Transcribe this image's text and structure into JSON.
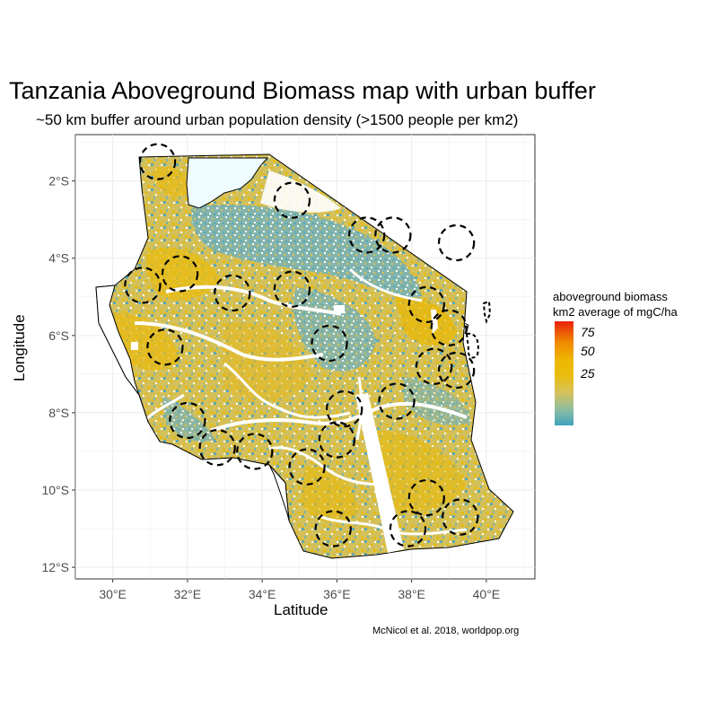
{
  "title": "Tanzania Aboveground Biomass map with urban buffer",
  "subtitle": "~50 km buffer around urban population density (>1500 people per km2)",
  "x_axis_title": "Latitude",
  "y_axis_title": "Longitude",
  "x_ticks": [
    "30°E",
    "32°E",
    "34°E",
    "36°E",
    "38°E",
    "40°E"
  ],
  "y_ticks": [
    "2°S",
    "4°S",
    "6°S",
    "8°S",
    "10°S",
    "12°S"
  ],
  "legend": {
    "title_line1": "aboveground biomass",
    "title_line2": "km2 average of mgC/ha",
    "ticks": [
      "75",
      "50",
      "25"
    ]
  },
  "caption": "McNicol et al. 2018, worldpop.org",
  "colors": {
    "low": "#3fa3bd",
    "mid": "#e9bd10",
    "high": "#e8210c",
    "water": "#eefcfd"
  },
  "map_data": {
    "type": "raster-map",
    "x_range": [
      29.0,
      41.3
    ],
    "y_range": [
      -12.3,
      -0.8
    ],
    "buffer_centers": [
      [
        31.2,
        -1.5
      ],
      [
        34.8,
        -2.5
      ],
      [
        36.8,
        -3.4
      ],
      [
        37.5,
        -3.4
      ],
      [
        39.2,
        -3.6
      ],
      [
        31.8,
        -4.4
      ],
      [
        30.8,
        -4.7
      ],
      [
        33.2,
        -4.9
      ],
      [
        34.8,
        -4.8
      ],
      [
        38.4,
        -5.2
      ],
      [
        39.0,
        -5.8
      ],
      [
        31.4,
        -6.3
      ],
      [
        35.8,
        -6.2
      ],
      [
        38.6,
        -6.8
      ],
      [
        39.2,
        -6.9
      ],
      [
        37.6,
        -7.7
      ],
      [
        36.2,
        -7.9
      ],
      [
        32.0,
        -8.2
      ],
      [
        36.0,
        -8.7
      ],
      [
        33.8,
        -9.0
      ],
      [
        32.8,
        -8.9
      ],
      [
        35.2,
        -9.4
      ],
      [
        38.4,
        -10.2
      ],
      [
        35.9,
        -11.0
      ],
      [
        37.9,
        -11.0
      ],
      [
        39.3,
        -10.7
      ]
    ]
  }
}
